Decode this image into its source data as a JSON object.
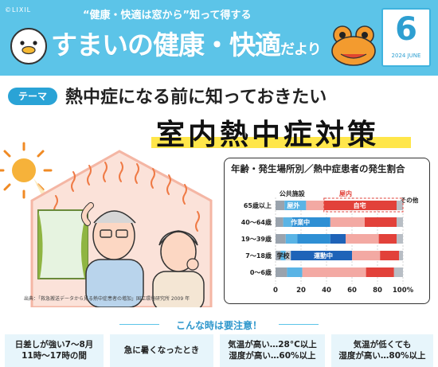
{
  "header": {
    "brand": "©LIXIL",
    "catch": "“健康・快適は窓から”知って得する",
    "title_main": "すまいの健康・快適",
    "title_small": "だより",
    "month": "6",
    "month_sub": "2024 JUNE"
  },
  "theme": {
    "tag": "テーマ",
    "subtitle": "熱中症になる前に知っておきたい",
    "headline": "室内熱中症対策"
  },
  "chart": {
    "title": "年齢・発生場所別／熱中症患者の発生割合",
    "source": "出典：「救急搬送データから見る熱中症患者の増加」国立環境研究所 2009 年",
    "legend_labels": {
      "public": "公共施設",
      "outdoor": "屋外",
      "indoor": "屋内",
      "home": "自宅",
      "other": "その他",
      "work": "作業中",
      "school": "学校",
      "sports": "運動中"
    }
  },
  "chart_data": {
    "type": "bar",
    "orientation": "horizontal",
    "stacked": true,
    "categories": [
      "65歳以上",
      "40〜64歳",
      "19〜39歳",
      "7〜18歳",
      "0〜6歳"
    ],
    "x": [
      0,
      20,
      40,
      60,
      80,
      100
    ],
    "xunit": "%",
    "xlim": [
      0,
      100
    ],
    "series": [
      {
        "name": "公共施設",
        "color": "#9aa3ad",
        "values": [
          7,
          6,
          8,
          4,
          9
        ]
      },
      {
        "name": "屋外",
        "color": "#5ab4e5",
        "values": [
          17,
          7,
          9,
          4,
          12
        ]
      },
      {
        "name": "作業中",
        "color": "#2e8fd4",
        "values": [
          0,
          30,
          26,
          0,
          0
        ]
      },
      {
        "name": "学校",
        "color": "#c9ced4",
        "values": [
          0,
          0,
          0,
          4,
          0
        ]
      },
      {
        "name": "運動中",
        "color": "#1f63b8",
        "values": [
          0,
          0,
          12,
          48,
          0
        ]
      },
      {
        "name": "屋内",
        "color": "#f3a9a3",
        "values": [
          14,
          27,
          26,
          22,
          50
        ]
      },
      {
        "name": "自宅",
        "color": "#e2413a",
        "values": [
          57,
          25,
          14,
          15,
          22
        ]
      },
      {
        "name": "その他",
        "color": "#b8bec5",
        "values": [
          5,
          5,
          5,
          3,
          7
        ]
      }
    ]
  },
  "caution": {
    "title": "こんな時は要注意！",
    "items": [
      {
        "line1": "日差しが強い7〜8月",
        "line2": "11時〜17時の間"
      },
      {
        "line1": "急に暑くなったとき",
        "line2": ""
      },
      {
        "line1": "気温が高い…28°C以上",
        "line2": "湿度が高い…60%以上"
      },
      {
        "line1": "気温が低くても",
        "line2": "湿度が高い…80%以上"
      }
    ]
  }
}
